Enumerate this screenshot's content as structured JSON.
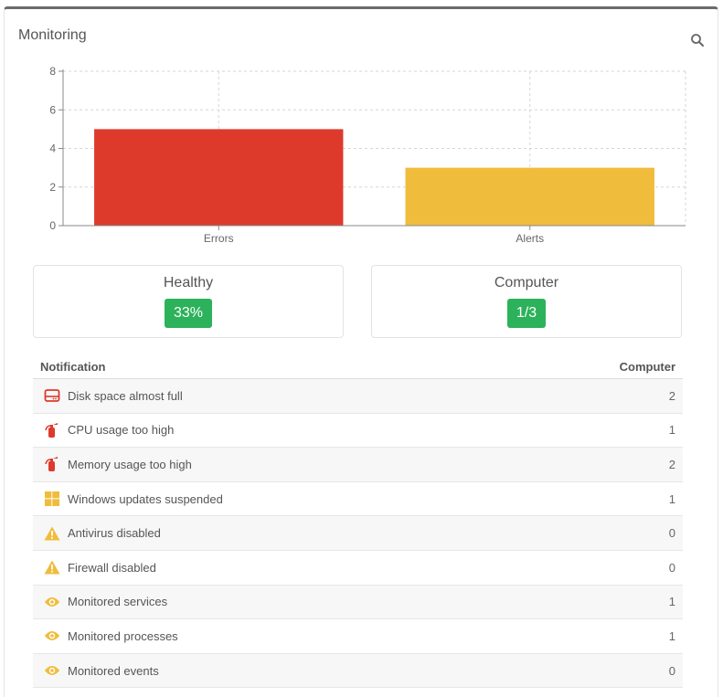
{
  "panel": {
    "title": "Monitoring",
    "search_icon": "search-icon"
  },
  "chart_data": {
    "type": "bar",
    "categories": [
      "Errors",
      "Alerts"
    ],
    "values": [
      5,
      3
    ],
    "colors": [
      "#de3a2c",
      "#f0bc3b"
    ],
    "ylim": [
      0,
      8
    ],
    "yticks": [
      0,
      2,
      4,
      6,
      8
    ],
    "grid": true
  },
  "stats": [
    {
      "label": "Healthy",
      "value": "33%",
      "color": "#2cb25a"
    },
    {
      "label": "Computer",
      "value": "1/3",
      "color": "#2cb25a"
    }
  ],
  "table": {
    "headers": {
      "notification": "Notification",
      "computer": "Computer"
    },
    "rows": [
      {
        "icon": "hard-drive-icon",
        "label": "Disk space almost full",
        "count": "2"
      },
      {
        "icon": "fire-extinguisher-icon",
        "label": "CPU usage too high",
        "count": "1"
      },
      {
        "icon": "fire-extinguisher-icon",
        "label": "Memory usage too high",
        "count": "2"
      },
      {
        "icon": "windows-icon",
        "label": "Windows updates suspended",
        "count": "1"
      },
      {
        "icon": "warning-icon",
        "label": "Antivirus disabled",
        "count": "0"
      },
      {
        "icon": "warning-icon",
        "label": "Firewall disabled",
        "count": "0"
      },
      {
        "icon": "eye-icon",
        "label": "Monitored services",
        "count": "1"
      },
      {
        "icon": "eye-icon",
        "label": "Monitored processes",
        "count": "1"
      },
      {
        "icon": "eye-icon",
        "label": "Monitored events",
        "count": "0"
      }
    ]
  }
}
